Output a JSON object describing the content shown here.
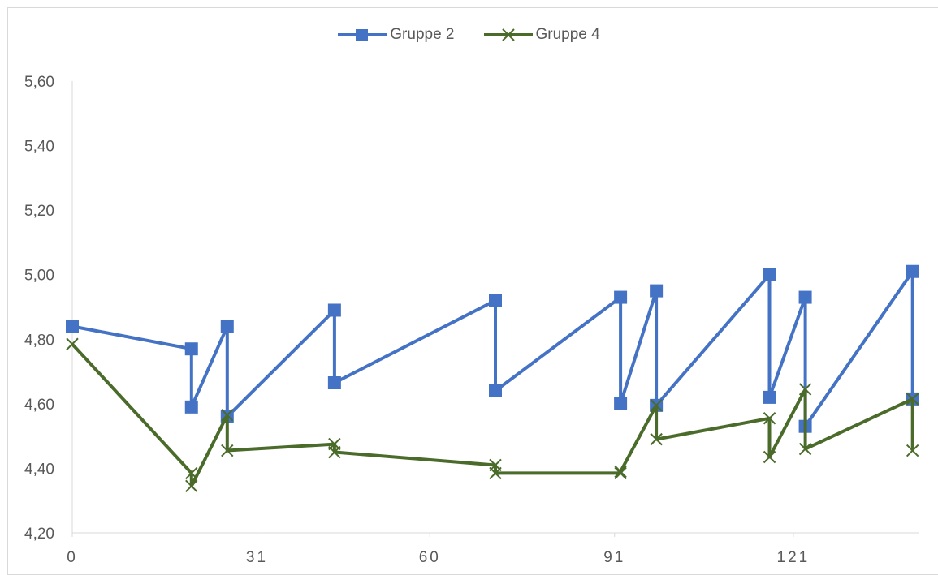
{
  "chart_data": {
    "type": "line",
    "title": "",
    "xlabel": "",
    "ylabel": "",
    "xlim": [
      0,
      142
    ],
    "ylim": [
      4.2,
      5.6
    ],
    "x_ticks": [
      0,
      31,
      60,
      91,
      121
    ],
    "x_tick_labels": [
      "0",
      "31",
      "60",
      "91",
      "121"
    ],
    "y_ticks": [
      4.2,
      4.4,
      4.6,
      4.8,
      5.0,
      5.2,
      5.4,
      5.6
    ],
    "y_tick_labels": [
      "4,20",
      "4,40",
      "4,60",
      "4,80",
      "5,00",
      "5,20",
      "5,40",
      "5,60"
    ],
    "grid": false,
    "legend_position": "top-center",
    "series": [
      {
        "name": "Gruppe 2",
        "color": "#4472c4",
        "marker": "square",
        "x": [
          0,
          20,
          20,
          26,
          26,
          44,
          44,
          71,
          71,
          92,
          92,
          98,
          98,
          117,
          117,
          123,
          123,
          141,
          141
        ],
        "y": [
          4.84,
          4.77,
          4.59,
          4.84,
          4.56,
          4.89,
          4.665,
          4.92,
          4.64,
          4.93,
          4.6,
          4.95,
          4.595,
          5.0,
          4.62,
          4.93,
          4.53,
          5.01,
          4.615
        ]
      },
      {
        "name": "Gruppe 4",
        "color": "#4a6b2a",
        "marker": "x",
        "x": [
          0,
          20,
          20,
          26,
          26,
          44,
          44,
          71,
          71,
          92,
          92,
          98,
          98,
          117,
          117,
          123,
          123,
          141,
          141
        ],
        "y": [
          4.785,
          4.385,
          4.345,
          4.565,
          4.455,
          4.475,
          4.45,
          4.41,
          4.385,
          4.385,
          4.39,
          4.595,
          4.49,
          4.555,
          4.435,
          4.645,
          4.46,
          4.615,
          4.455
        ]
      }
    ]
  }
}
